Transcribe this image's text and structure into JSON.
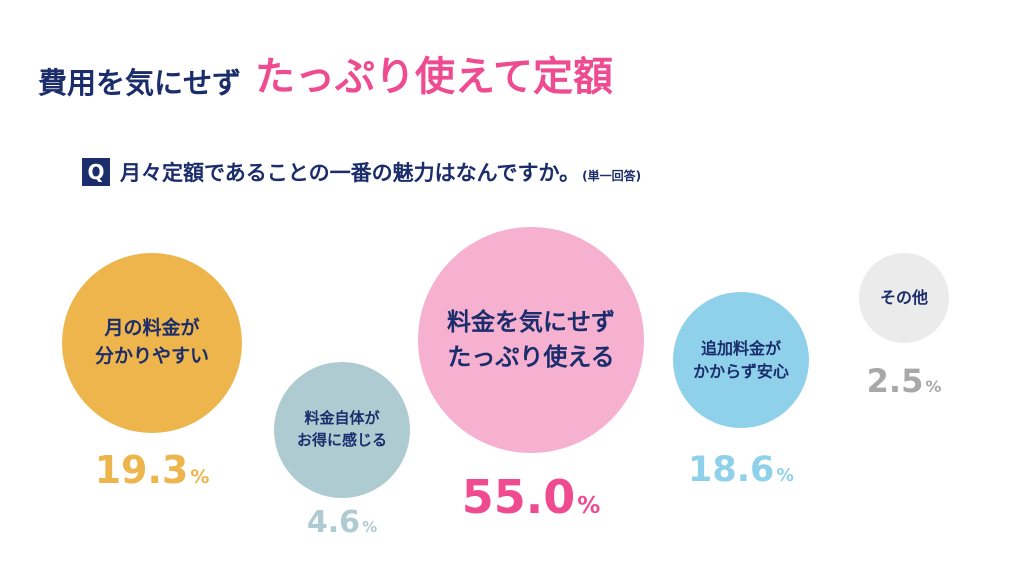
{
  "header": {
    "lead": "費用を気にせず",
    "highlight": "たっぷり使えて定額"
  },
  "question": {
    "badge": "Q",
    "text": "月々定額であることの一番の魅力はなんですか。",
    "note": "(単一回答)"
  },
  "chart_data": {
    "type": "bubble",
    "title": "月々定額であることの一番の魅力はなんですか。(単一回答)",
    "unit": "%",
    "items": [
      {
        "label_lines": [
          "月の料金が",
          "分かりやすい"
        ],
        "value": 19.3,
        "value_text": "19.3",
        "color": "#edb54b",
        "text_color": "#edb54b"
      },
      {
        "label_lines": [
          "料金自体が",
          "お得に感じる"
        ],
        "value": 4.6,
        "value_text": "4.6",
        "color": "#afcbd2",
        "text_color": "#afcbd2"
      },
      {
        "label_lines": [
          "料金を気にせず",
          "たっぷり使える"
        ],
        "value": 55.0,
        "value_text": "55.0",
        "color": "#f6b1d1",
        "text_color": "#ee4b90"
      },
      {
        "label_lines": [
          "追加料金が",
          "かからず安心"
        ],
        "value": 18.6,
        "value_text": "18.6",
        "color": "#8fd0ea",
        "text_color": "#8fd0ea"
      },
      {
        "label_lines": [
          "その他"
        ],
        "value": 2.5,
        "value_text": "2.5",
        "color": "#ebebeb",
        "text_color": "#a8a8a8"
      }
    ]
  }
}
